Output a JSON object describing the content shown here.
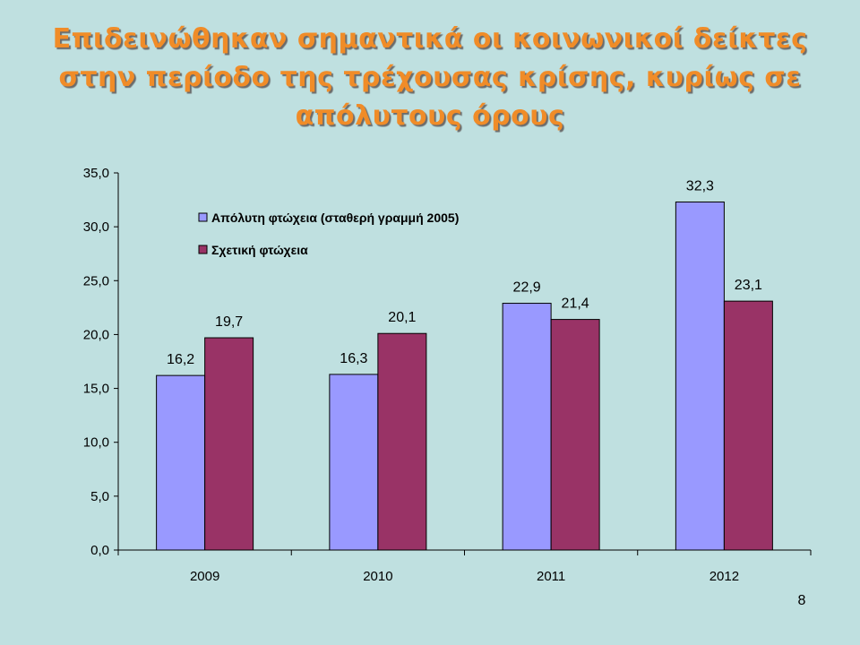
{
  "slide": {
    "title": "Επιδεινώθηκαν σημαντικά οι κοινωνικοί δείκτες στην περίοδο της τρέχουσας κρίσης, κυρίως σε απόλυτους όρους",
    "page_number": "8"
  },
  "colors": {
    "background": "#bfe0e0",
    "title": "#f08c28",
    "series_1": "#9999ff",
    "series_2": "#993366"
  },
  "chart_data": {
    "type": "bar",
    "categories": [
      "2009",
      "2010",
      "2011",
      "2012"
    ],
    "series": [
      {
        "name": "Απόλυτη φτώχεια (σταθερή γραμμή 2005)",
        "values": [
          16.2,
          16.3,
          22.9,
          32.3
        ],
        "labels": [
          "16,2",
          "16,3",
          "22,9",
          "32,3"
        ]
      },
      {
        "name": "Σχετική φτώχεια",
        "values": [
          19.7,
          20.1,
          21.4,
          23.1
        ],
        "labels": [
          "19,7",
          "20,1",
          "21,4",
          "23,1"
        ]
      }
    ],
    "ylim": [
      0,
      35
    ],
    "yticks": [
      0,
      5,
      10,
      15,
      20,
      25,
      30,
      35
    ],
    "ytick_labels": [
      "0,0",
      "5,0",
      "10,0",
      "15,0",
      "20,0",
      "25,0",
      "30,0",
      "35,0"
    ],
    "grid": false,
    "legend": "top-left inside plot",
    "xlabel": "",
    "ylabel": ""
  }
}
